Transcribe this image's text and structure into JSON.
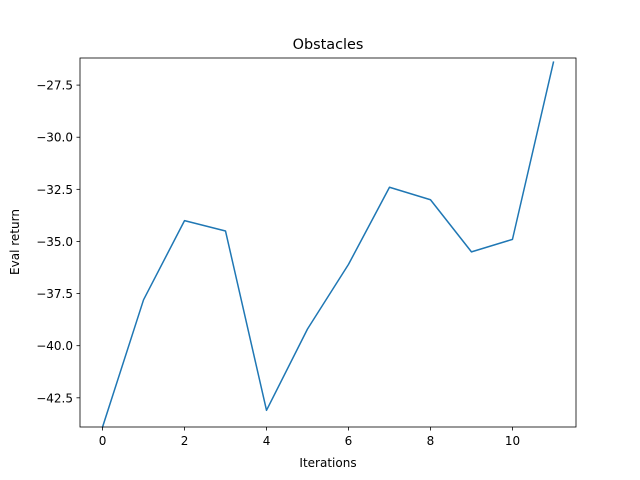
{
  "chart_data": {
    "type": "line",
    "title": "Obstacles",
    "xlabel": "Iterations",
    "ylabel": "Eval return",
    "xlim": [
      -0.55,
      11.55
    ],
    "ylim": [
      -43.9,
      -26.2
    ],
    "xticks": [
      0,
      2,
      4,
      6,
      8,
      10
    ],
    "xtick_labels": [
      "0",
      "2",
      "4",
      "6",
      "8",
      "10"
    ],
    "yticks": [
      -42.5,
      -40.0,
      -37.5,
      -35.0,
      -32.5,
      -30.0,
      -27.5
    ],
    "ytick_labels": [
      "−42.5",
      "−40.0",
      "−37.5",
      "−35.0",
      "−32.5",
      "−30.0",
      "−27.5"
    ],
    "grid": false,
    "series": [
      {
        "color": "#1f77b4",
        "x": [
          0,
          1,
          2,
          3,
          4,
          5,
          6,
          7,
          8,
          9,
          10,
          11
        ],
        "y": [
          -43.9,
          -37.8,
          -34.0,
          -34.5,
          -43.1,
          -39.2,
          -36.1,
          -32.4,
          -33.0,
          -35.5,
          -34.9,
          -26.4
        ]
      }
    ]
  }
}
